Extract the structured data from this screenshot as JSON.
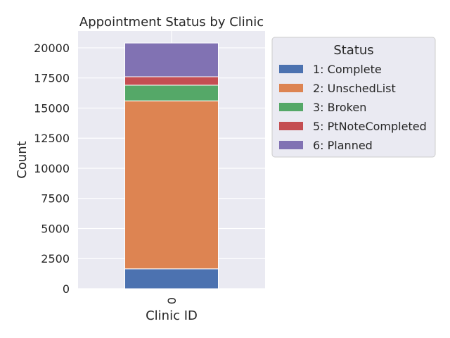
{
  "chart_data": {
    "type": "bar",
    "stacked": true,
    "title": "Appointment Status by Clinic",
    "xlabel": "Clinic ID",
    "ylabel": "Count",
    "categories": [
      "0"
    ],
    "ylim": [
      0,
      21400
    ],
    "yticks": [
      0,
      2500,
      5000,
      7500,
      10000,
      12500,
      15000,
      17500,
      20000
    ],
    "grid": true,
    "legend": {
      "title": "Status",
      "placement": "outside-right-top"
    },
    "series": [
      {
        "name": "1: Complete",
        "color": "#4c72b0",
        "values": [
          1650
        ]
      },
      {
        "name": "2: UnschedList",
        "color": "#dd8452",
        "values": [
          13950
        ]
      },
      {
        "name": "3: Broken",
        "color": "#55a868",
        "values": [
          1300
        ]
      },
      {
        "name": "5: PtNoteCompleted",
        "color": "#c44e52",
        "values": [
          700
        ]
      },
      {
        "name": "6: Planned",
        "color": "#8172b3",
        "values": [
          2800
        ]
      }
    ]
  }
}
